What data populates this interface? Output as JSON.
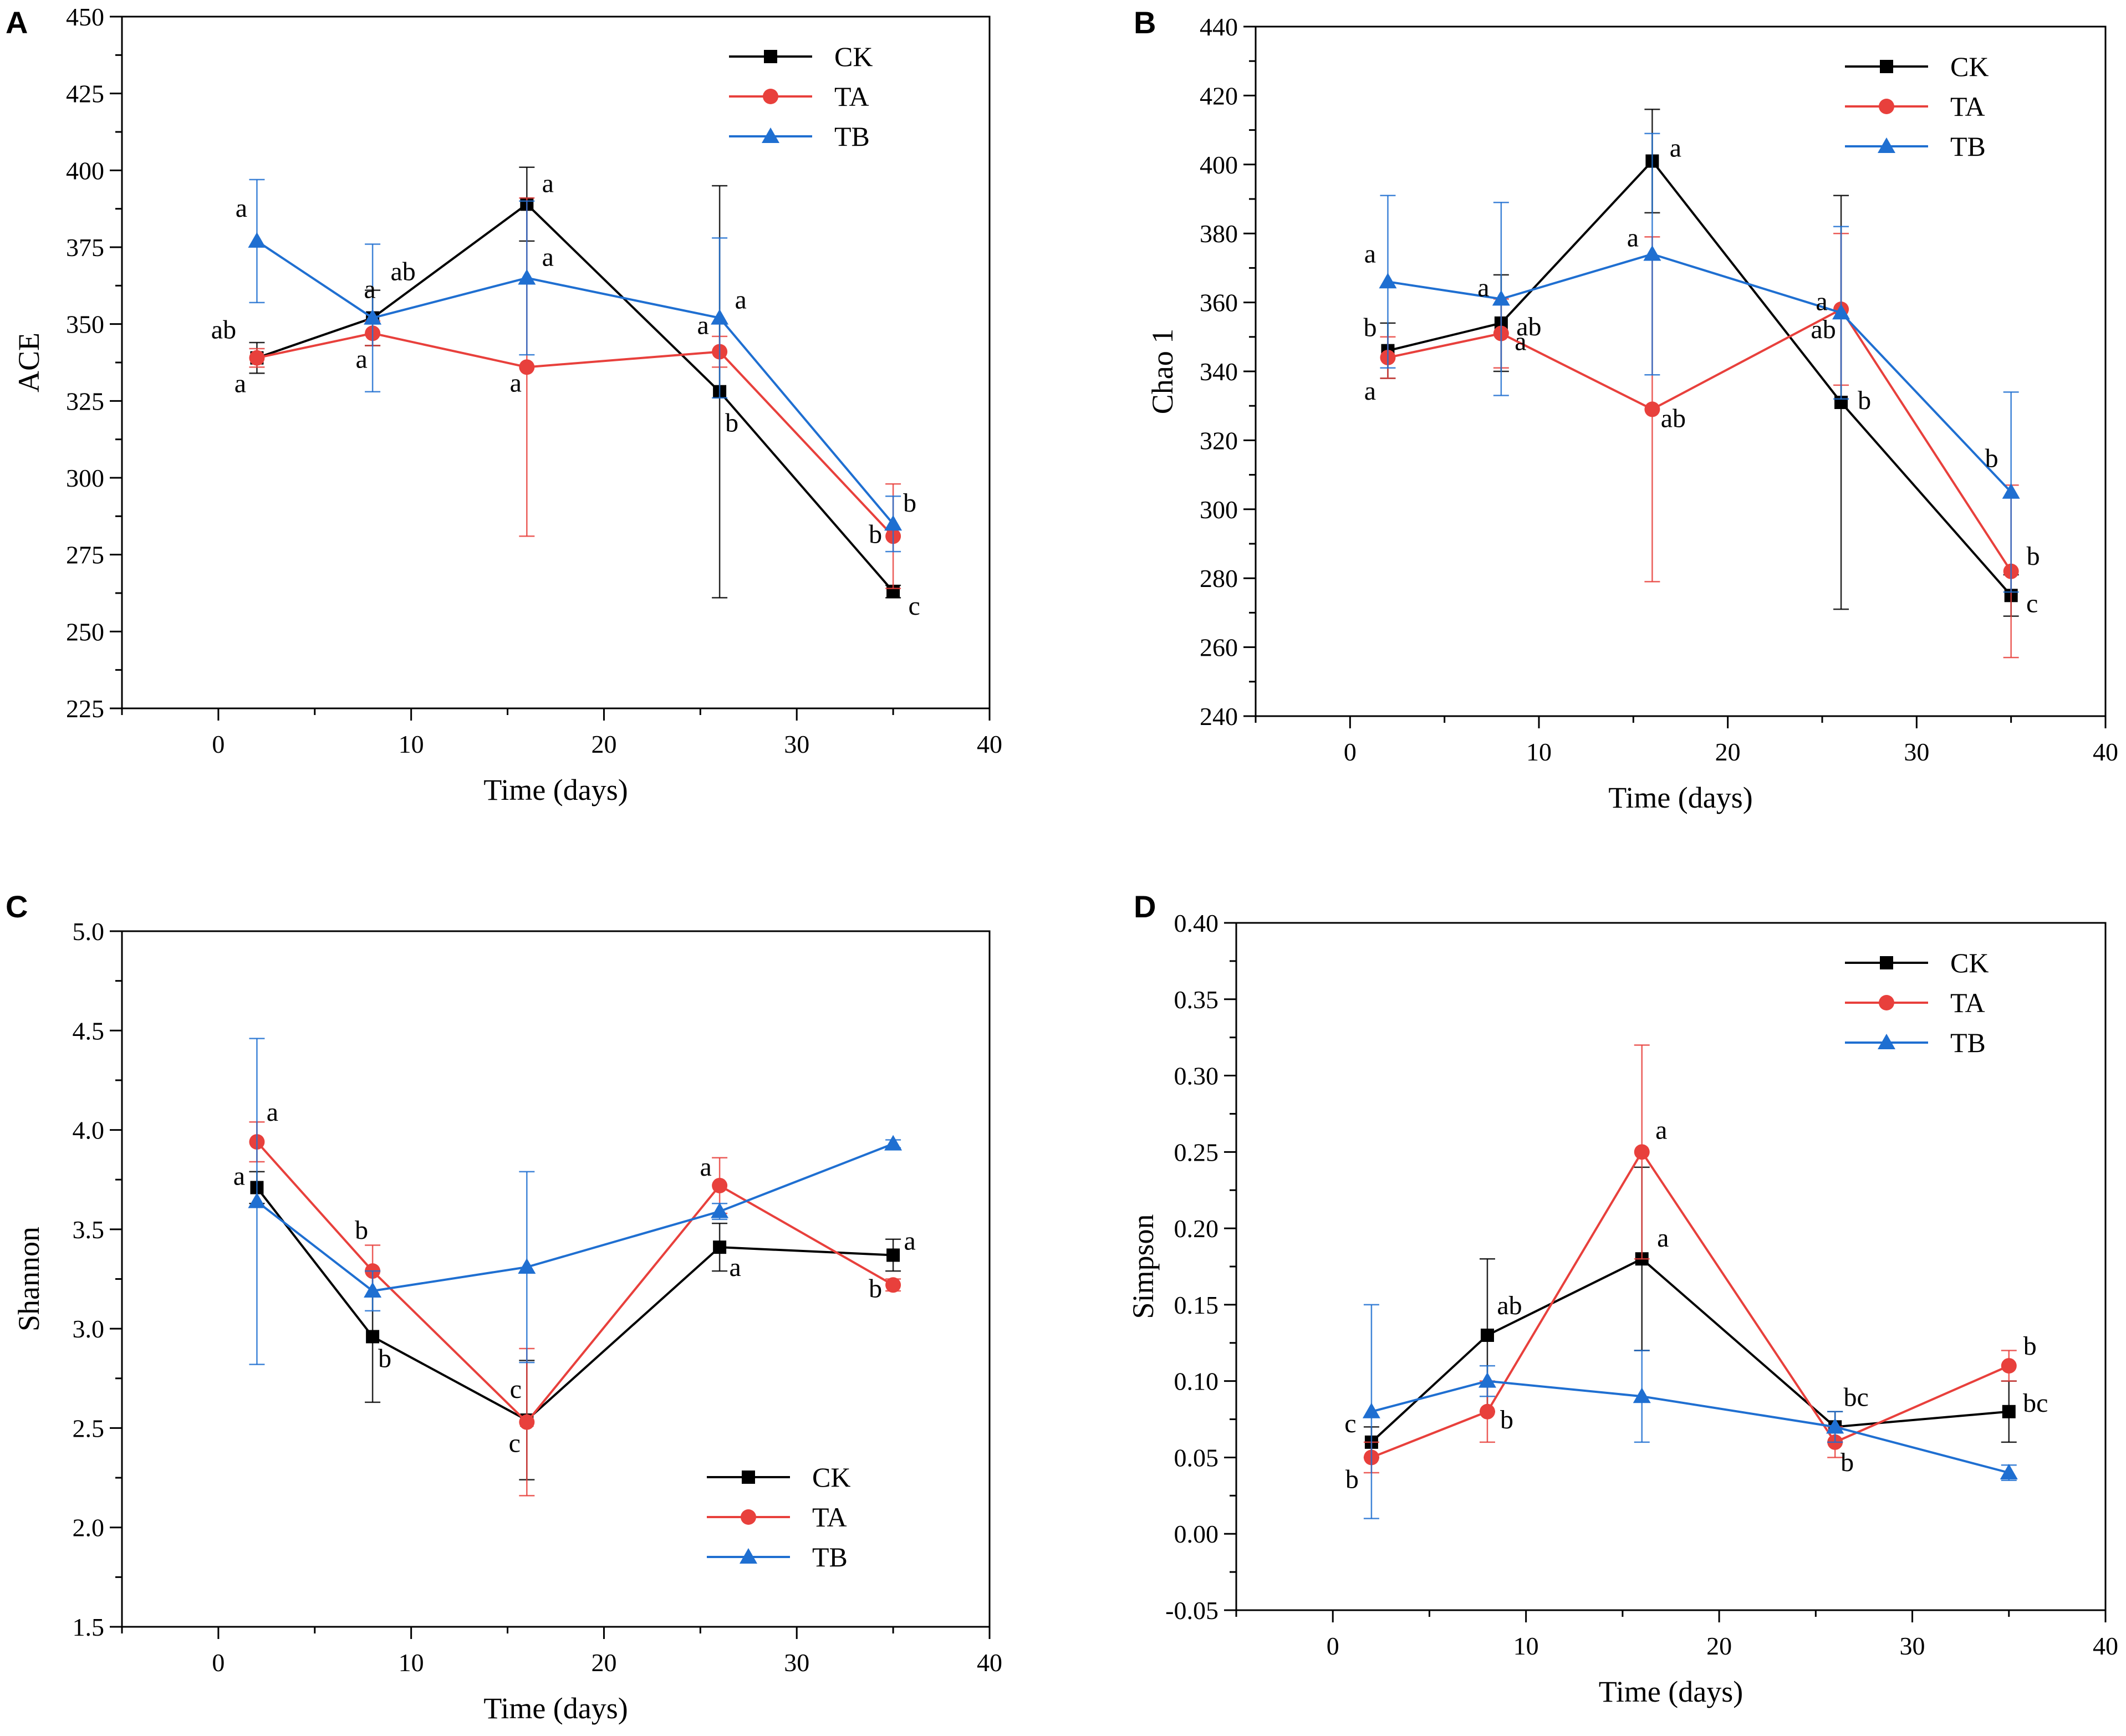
{
  "chart_data": [
    {
      "panel": "A",
      "type": "line",
      "xlabel": "Time (days)",
      "ylabel": "ACE",
      "xlim": [
        -5,
        40
      ],
      "ylim": [
        225,
        450
      ],
      "xticks": [
        0,
        10,
        20,
        30,
        40
      ],
      "yticks": [
        225,
        250,
        275,
        300,
        325,
        350,
        375,
        400,
        425,
        450
      ],
      "legend_position": "top-right",
      "x": [
        2,
        8,
        16,
        26,
        35
      ],
      "series": [
        {
          "name": "CK",
          "color": "#000000",
          "marker": "square",
          "values": [
            339,
            352,
            389,
            328,
            263
          ],
          "errors": [
            5,
            9,
            12,
            67,
            2
          ],
          "labels": [
            "ab",
            "ab",
            "a",
            "b",
            "c"
          ]
        },
        {
          "name": "TA",
          "color": "#e8403c",
          "marker": "circle",
          "values": [
            339,
            347,
            336,
            341,
            281
          ],
          "errors": [
            3,
            4,
            55,
            5,
            17
          ],
          "labels": [
            "a",
            "a",
            "a",
            "a",
            "b"
          ]
        },
        {
          "name": "TB",
          "color": "#1f6fd1",
          "marker": "triangle",
          "values": [
            377,
            352,
            365,
            352,
            285
          ],
          "errors": [
            20,
            24,
            25,
            26,
            9
          ],
          "labels": [
            "a",
            "a",
            "a",
            "a",
            "b"
          ]
        }
      ]
    },
    {
      "panel": "B",
      "type": "line",
      "xlabel": "Time (days)",
      "ylabel": "Chao 1",
      "xlim": [
        -5,
        40
      ],
      "ylim": [
        240,
        440
      ],
      "xticks": [
        0,
        10,
        20,
        30,
        40
      ],
      "yticks": [
        240,
        260,
        280,
        300,
        320,
        340,
        360,
        380,
        400,
        420,
        440
      ],
      "legend_position": "top-right",
      "x": [
        2,
        8,
        16,
        26,
        35
      ],
      "series": [
        {
          "name": "CK",
          "color": "#000000",
          "marker": "square",
          "values": [
            346,
            354,
            401,
            331,
            275
          ],
          "errors": [
            8,
            14,
            15,
            60,
            6
          ],
          "labels": [
            "b",
            "ab",
            "a",
            "b",
            "c"
          ]
        },
        {
          "name": "TA",
          "color": "#e8403c",
          "marker": "circle",
          "values": [
            344,
            351,
            329,
            358,
            282
          ],
          "errors": [
            6,
            10,
            50,
            22,
            25
          ],
          "labels": [
            "a",
            "a",
            "ab",
            "ab",
            "b"
          ]
        },
        {
          "name": "TB",
          "color": "#1f6fd1",
          "marker": "triangle",
          "values": [
            366,
            361,
            374,
            357,
            305
          ],
          "errors": [
            25,
            28,
            35,
            25,
            29
          ],
          "labels": [
            "a",
            "a",
            "a",
            "a",
            "b"
          ]
        }
      ]
    },
    {
      "panel": "C",
      "type": "line",
      "xlabel": "Time (days)",
      "ylabel": "Shannon",
      "xlim": [
        -5,
        40
      ],
      "ylim": [
        1.5,
        5.0
      ],
      "xticks": [
        0,
        10,
        20,
        30,
        40
      ],
      "yticks": [
        1.5,
        2.0,
        2.5,
        3.0,
        3.5,
        4.0,
        4.5,
        5.0
      ],
      "ytick_labels": [
        "1.5",
        "2.0",
        "2.5",
        "3.0",
        "3.5",
        "4.0",
        "4.5",
        "5.0"
      ],
      "legend_position": "bottom-right",
      "x": [
        2,
        8,
        16,
        26,
        35
      ],
      "series": [
        {
          "name": "CK",
          "color": "#000000",
          "marker": "square",
          "values": [
            3.71,
            2.96,
            2.54,
            3.41,
            3.37
          ],
          "errors": [
            0.08,
            0.33,
            0.3,
            0.12,
            0.08
          ],
          "labels": [
            "a",
            "b",
            "c",
            "a",
            "a"
          ]
        },
        {
          "name": "TA",
          "color": "#e8403c",
          "marker": "circle",
          "values": [
            3.94,
            3.29,
            2.53,
            3.72,
            3.22
          ],
          "errors": [
            0.1,
            0.13,
            0.37,
            0.14,
            0.03
          ],
          "labels": [
            "a",
            "b",
            "c",
            "a",
            "b"
          ]
        },
        {
          "name": "TB",
          "color": "#1f6fd1",
          "marker": "triangle",
          "values": [
            3.64,
            3.19,
            3.31,
            3.59,
            3.93
          ],
          "errors": [
            0.82,
            0.1,
            0.48,
            0.04,
            0.02
          ],
          "labels": [
            "",
            "",
            "",
            "",
            ""
          ]
        }
      ]
    },
    {
      "panel": "D",
      "type": "line",
      "xlabel": "Time (days)",
      "ylabel": "Simpson",
      "xlim": [
        -5,
        40
      ],
      "ylim": [
        -0.05,
        0.4
      ],
      "xticks": [
        0,
        10,
        20,
        30,
        40
      ],
      "yticks": [
        -0.05,
        0.0,
        0.05,
        0.1,
        0.15,
        0.2,
        0.25,
        0.3,
        0.35,
        0.4
      ],
      "ytick_labels": [
        "-0.05",
        "0.00",
        "0.05",
        "0.10",
        "0.15",
        "0.20",
        "0.25",
        "0.30",
        "0.35",
        "0.40"
      ],
      "legend_position": "top-right",
      "x": [
        2,
        8,
        16,
        26,
        35
      ],
      "series": [
        {
          "name": "CK",
          "color": "#000000",
          "marker": "square",
          "values": [
            0.06,
            0.13,
            0.18,
            0.07,
            0.08
          ],
          "errors": [
            0.01,
            0.05,
            0.06,
            0.01,
            0.02
          ],
          "labels": [
            "c",
            "ab",
            "a",
            "bc",
            "bc"
          ]
        },
        {
          "name": "TA",
          "color": "#e8403c",
          "marker": "circle",
          "values": [
            0.05,
            0.08,
            0.25,
            0.06,
            0.11
          ],
          "errors": [
            0.01,
            0.02,
            0.07,
            0.01,
            0.01
          ],
          "labels": [
            "b",
            "b",
            "a",
            "b",
            "b"
          ]
        },
        {
          "name": "TB",
          "color": "#1f6fd1",
          "marker": "triangle",
          "values": [
            0.08,
            0.1,
            0.09,
            0.07,
            0.04
          ],
          "errors": [
            0.07,
            0.01,
            0.03,
            0.01,
            0.005
          ],
          "labels": [
            "",
            "",
            "",
            "",
            ""
          ]
        }
      ]
    }
  ]
}
